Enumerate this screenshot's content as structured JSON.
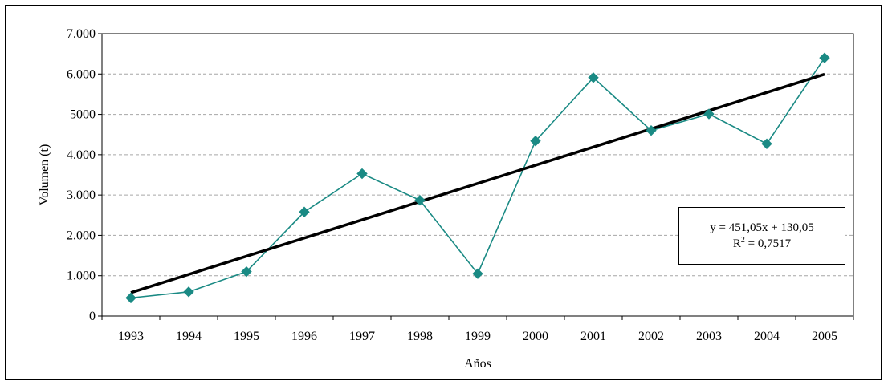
{
  "chart_data": {
    "type": "line",
    "categories": [
      "1993",
      "1994",
      "1995",
      "1996",
      "1997",
      "1998",
      "1999",
      "2000",
      "2001",
      "2002",
      "2003",
      "2004",
      "2005"
    ],
    "series": [
      {
        "values": [
          450,
          600,
          1100,
          2580,
          3530,
          2870,
          1050,
          4340,
          5910,
          4600,
          5010,
          4270,
          6400
        ],
        "color": "#1a8a84",
        "marker": "diamond"
      }
    ],
    "trendline": {
      "type": "linear",
      "slope": 451.05,
      "intercept": 130.05,
      "color": "#000000"
    },
    "equation": {
      "line1": "y = 451,05x + 130,05",
      "r2_prefix": "R",
      "r2_exp": "2",
      "r2_rest": " = 0,7517"
    },
    "xlabel": "Años",
    "ylabel": "Volumen (t)",
    "ylim": [
      0,
      7000
    ],
    "yticks": [
      {
        "value": 0,
        "label": "0"
      },
      {
        "value": 1000,
        "label": "1.000"
      },
      {
        "value": 2000,
        "label": "2.000"
      },
      {
        "value": 3000,
        "label": "3.000"
      },
      {
        "value": 4000,
        "label": "4.000"
      },
      {
        "value": 5000,
        "label": "5000"
      },
      {
        "value": 6000,
        "label": "6.000"
      },
      {
        "value": 7000,
        "label": "7.000"
      }
    ],
    "grid": "horizontal-dashed"
  }
}
